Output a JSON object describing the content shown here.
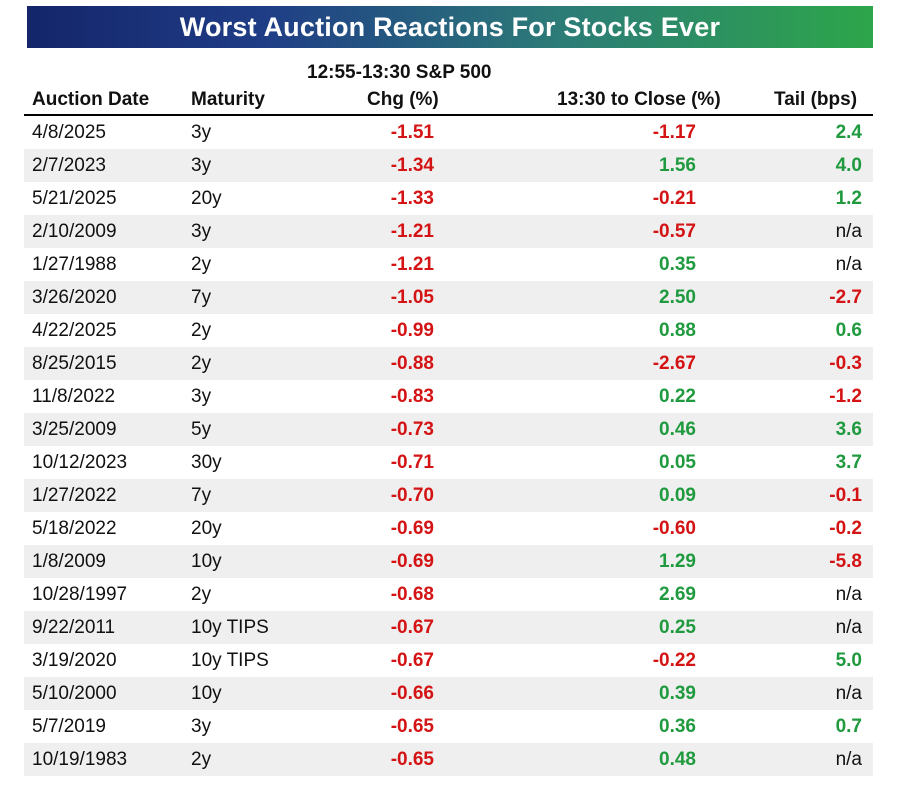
{
  "title": "Worst Auction Reactions For Stocks Ever",
  "super_header": "12:55-13:30 S&P 500",
  "columns": {
    "date": "Auction Date",
    "maturity": "Maturity",
    "chg": "Chg (%)",
    "close": "13:30 to Close (%)",
    "tail": "Tail (bps)"
  },
  "colors": {
    "negative": "#d41414",
    "positive": "#1f9a3e"
  },
  "chart_data": {
    "type": "table",
    "title": "Worst Auction Reactions For Stocks Ever",
    "columns": [
      "Auction Date",
      "Maturity",
      "12:55-13:30 S&P 500 Chg (%)",
      "13:30 to Close (%)",
      "Tail (bps)"
    ],
    "rows": [
      {
        "date": "4/8/2025",
        "maturity": "3y",
        "chg": "-1.51",
        "close": "-1.17",
        "tail": "2.4"
      },
      {
        "date": "2/7/2023",
        "maturity": "3y",
        "chg": "-1.34",
        "close": "1.56",
        "tail": "4.0"
      },
      {
        "date": "5/21/2025",
        "maturity": "20y",
        "chg": "-1.33",
        "close": "-0.21",
        "tail": "1.2"
      },
      {
        "date": "2/10/2009",
        "maturity": "3y",
        "chg": "-1.21",
        "close": "-0.57",
        "tail": "n/a"
      },
      {
        "date": "1/27/1988",
        "maturity": "2y",
        "chg": "-1.21",
        "close": "0.35",
        "tail": "n/a"
      },
      {
        "date": "3/26/2020",
        "maturity": "7y",
        "chg": "-1.05",
        "close": "2.50",
        "tail": "-2.7"
      },
      {
        "date": "4/22/2025",
        "maturity": "2y",
        "chg": "-0.99",
        "close": "0.88",
        "tail": "0.6"
      },
      {
        "date": "8/25/2015",
        "maturity": "2y",
        "chg": "-0.88",
        "close": "-2.67",
        "tail": "-0.3"
      },
      {
        "date": "11/8/2022",
        "maturity": "3y",
        "chg": "-0.83",
        "close": "0.22",
        "tail": "-1.2"
      },
      {
        "date": "3/25/2009",
        "maturity": "5y",
        "chg": "-0.73",
        "close": "0.46",
        "tail": "3.6"
      },
      {
        "date": "10/12/2023",
        "maturity": "30y",
        "chg": "-0.71",
        "close": "0.05",
        "tail": "3.7"
      },
      {
        "date": "1/27/2022",
        "maturity": "7y",
        "chg": "-0.70",
        "close": "0.09",
        "tail": "-0.1"
      },
      {
        "date": "5/18/2022",
        "maturity": "20y",
        "chg": "-0.69",
        "close": "-0.60",
        "tail": "-0.2"
      },
      {
        "date": "1/8/2009",
        "maturity": "10y",
        "chg": "-0.69",
        "close": "1.29",
        "tail": "-5.8"
      },
      {
        "date": "10/28/1997",
        "maturity": "2y",
        "chg": "-0.68",
        "close": "2.69",
        "tail": "n/a"
      },
      {
        "date": "9/22/2011",
        "maturity": "10y TIPS",
        "chg": "-0.67",
        "close": "0.25",
        "tail": "n/a"
      },
      {
        "date": "3/19/2020",
        "maturity": "10y TIPS",
        "chg": "-0.67",
        "close": "-0.22",
        "tail": "5.0"
      },
      {
        "date": "5/10/2000",
        "maturity": "10y",
        "chg": "-0.66",
        "close": "0.39",
        "tail": "n/a"
      },
      {
        "date": "5/7/2019",
        "maturity": "3y",
        "chg": "-0.65",
        "close": "0.36",
        "tail": "0.7"
      },
      {
        "date": "10/19/1983",
        "maturity": "2y",
        "chg": "-0.65",
        "close": "0.48",
        "tail": "n/a"
      }
    ]
  }
}
